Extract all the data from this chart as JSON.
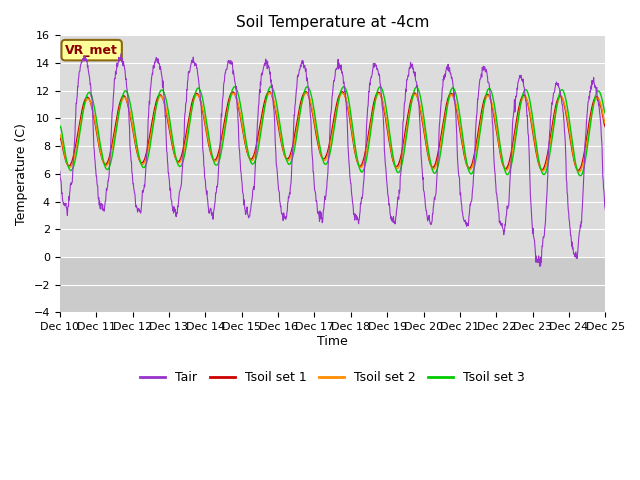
{
  "title": "Soil Temperature at -4cm",
  "xlabel": "Time",
  "ylabel": "Temperature (C)",
  "ylim": [
    -4,
    16
  ],
  "yticks": [
    -4,
    -2,
    0,
    2,
    4,
    6,
    8,
    10,
    12,
    14,
    16
  ],
  "colors": {
    "Tair": "#9932CC",
    "Tsoil_set1": "#CC0000",
    "Tsoil_set2": "#FF8C00",
    "Tsoil_set3": "#00CC00"
  },
  "legend_labels": [
    "Tair",
    "Tsoil set 1",
    "Tsoil set 2",
    "Tsoil set 3"
  ],
  "annotation_text": "VR_met",
  "annotation_color": "#8B0000",
  "annotation_bg": "#FFFF99",
  "plot_bg_color": "#DCDCDC",
  "fig_bg_color": "#FFFFFF",
  "grid_color": "#FFFFFF",
  "title_fontsize": 11,
  "axis_fontsize": 9,
  "tick_fontsize": 8,
  "n_points": 1440,
  "n_days": 15
}
